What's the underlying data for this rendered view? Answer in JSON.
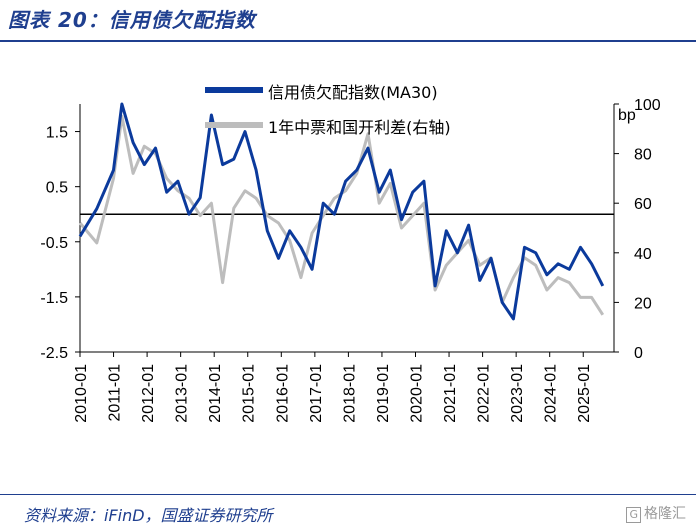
{
  "title": "图表 20：信用债欠配指数",
  "source": "资料来源：iFinD，国盛证券研究所",
  "watermark": "格隆汇",
  "colors": {
    "blue": "#0b3a9c",
    "gray": "#bdbdbd",
    "title": "#1f3f8f"
  },
  "chart_data": {
    "type": "line",
    "x_ticks": [
      "2010-01",
      "2011-01",
      "2012-01",
      "2013-01",
      "2014-01",
      "2015-01",
      "2016-01",
      "2017-01",
      "2018-01",
      "2019-01",
      "2020-01",
      "2021-01",
      "2022-01",
      "2023-01",
      "2024-01",
      "2025-01"
    ],
    "y_left": {
      "ticks": [
        1.5,
        0.5,
        -0.5,
        -1.5,
        -2.5
      ],
      "range": [
        -2.5,
        2.0
      ]
    },
    "y_right": {
      "ticks": [
        100,
        80,
        60,
        40,
        20,
        0
      ],
      "range": [
        0,
        100
      ],
      "unit": "bp"
    },
    "legend_position": "top",
    "series": [
      {
        "name": "信用债欠配指数(MA30)",
        "axis": "left",
        "x": [
          "2010-01",
          "2010-07",
          "2011-01",
          "2011-04",
          "2011-08",
          "2011-12",
          "2012-04",
          "2012-08",
          "2012-12",
          "2013-04",
          "2013-08",
          "2013-12",
          "2014-04",
          "2014-08",
          "2014-12",
          "2015-04",
          "2015-08",
          "2015-12",
          "2016-04",
          "2016-08",
          "2016-12",
          "2017-04",
          "2017-08",
          "2017-12",
          "2018-04",
          "2018-08",
          "2018-12",
          "2019-04",
          "2019-08",
          "2019-12",
          "2020-04",
          "2020-08",
          "2020-12",
          "2021-04",
          "2021-08",
          "2021-12",
          "2022-04",
          "2022-08",
          "2022-12",
          "2023-04",
          "2023-08",
          "2023-12",
          "2024-04",
          "2024-08",
          "2024-12",
          "2025-04",
          "2025-08"
        ],
        "values": [
          -0.4,
          0.1,
          0.8,
          2.0,
          1.3,
          0.9,
          1.2,
          0.4,
          0.6,
          0.0,
          0.3,
          1.8,
          0.9,
          1.0,
          1.5,
          0.8,
          -0.3,
          -0.8,
          -0.3,
          -0.6,
          -1.0,
          0.2,
          0.0,
          0.6,
          0.8,
          1.2,
          0.4,
          0.8,
          -0.1,
          0.4,
          0.6,
          -1.3,
          -0.3,
          -0.7,
          -0.2,
          -1.2,
          -0.8,
          -1.6,
          -1.9,
          -0.6,
          -0.7,
          -1.1,
          -0.9,
          -1.0,
          -0.6,
          -0.9,
          -1.3
        ]
      },
      {
        "name": "1年中票和国开利差(右轴)",
        "axis": "right",
        "x": [
          "2010-01",
          "2010-07",
          "2011-01",
          "2011-04",
          "2011-08",
          "2011-12",
          "2012-04",
          "2012-08",
          "2012-12",
          "2013-04",
          "2013-08",
          "2013-12",
          "2014-04",
          "2014-08",
          "2014-12",
          "2015-04",
          "2015-08",
          "2015-12",
          "2016-04",
          "2016-08",
          "2016-12",
          "2017-04",
          "2017-08",
          "2017-12",
          "2018-04",
          "2018-08",
          "2018-12",
          "2019-04",
          "2019-08",
          "2019-12",
          "2020-04",
          "2020-08",
          "2020-12",
          "2021-04",
          "2021-08",
          "2021-12",
          "2022-04",
          "2022-08",
          "2022-12",
          "2023-04",
          "2023-08",
          "2023-12",
          "2024-04",
          "2024-08",
          "2024-12",
          "2025-04",
          "2025-08"
        ],
        "values": [
          52,
          44,
          70,
          95,
          72,
          83,
          80,
          70,
          65,
          62,
          55,
          60,
          28,
          58,
          65,
          62,
          55,
          52,
          45,
          30,
          48,
          55,
          62,
          65,
          72,
          88,
          60,
          68,
          50,
          55,
          60,
          25,
          35,
          40,
          45,
          35,
          38,
          20,
          30,
          38,
          35,
          25,
          30,
          28,
          22,
          22,
          15
        ]
      }
    ]
  }
}
